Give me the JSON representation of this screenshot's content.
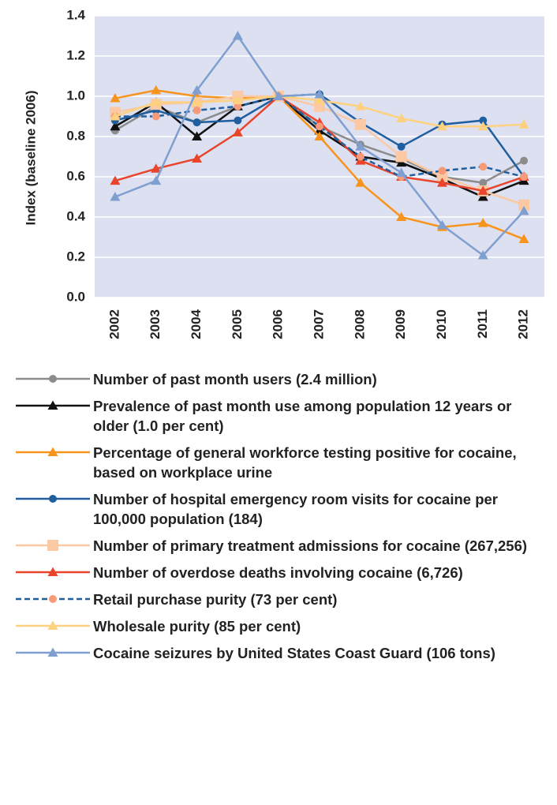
{
  "chart_data": {
    "type": "line",
    "ylabel": "Index (baseline 2006)",
    "categories": [
      "2002",
      "2003",
      "2004",
      "2005",
      "2006",
      "2007",
      "2008",
      "2009",
      "2010",
      "2011",
      "2012"
    ],
    "ylim": [
      0,
      1.4
    ],
    "yticks": [
      {
        "value": 0,
        "label": "0.0"
      },
      0.2,
      0.4,
      0.6,
      0.8,
      {
        "value": 1,
        "label": "1.0"
      },
      1.2,
      1.4
    ],
    "grid": true,
    "series": [
      {
        "name": "Number of past month users (2.4 million)",
        "color": "#8c8c8c",
        "marker": "circle",
        "values": [
          0.83,
          0.95,
          0.87,
          0.95,
          1.0,
          0.85,
          0.76,
          0.69,
          0.6,
          0.57,
          0.68
        ]
      },
      {
        "name": "Prevalence of past month use among population 12 years or older (1.0 per cent)",
        "color": "#111111",
        "marker": "triangle",
        "values": [
          0.85,
          0.97,
          0.8,
          0.95,
          1.0,
          0.83,
          0.7,
          0.67,
          0.59,
          0.5,
          0.58
        ]
      },
      {
        "name": "Percentage of general workforce testing positive for cocaine, based on workplace urine",
        "color": "#f7941d",
        "marker": "triangle",
        "values": [
          0.99,
          1.03,
          1.0,
          0.99,
          1.0,
          0.8,
          0.57,
          0.4,
          0.35,
          0.37,
          0.29
        ]
      },
      {
        "name": "Number of hospital emergency room visits for cocaine per 100,000 population (184)",
        "color": "#1f5fa0",
        "marker": "circle",
        "values": [
          0.88,
          0.93,
          0.87,
          0.88,
          1.0,
          1.01,
          0.87,
          0.75,
          0.86,
          0.88,
          0.6
        ]
      },
      {
        "name": "Number of primary treatment admissions for cocaine (267,256)",
        "color": "#fbc9a4",
        "marker": "square",
        "values": [
          0.92,
          0.96,
          0.97,
          1.0,
          1.0,
          0.95,
          0.86,
          0.7,
          0.6,
          0.53,
          0.46
        ]
      },
      {
        "name": "Number of overdose deaths involving cocaine (6,726)",
        "color": "#e8452c",
        "marker": "triangle",
        "values": [
          0.58,
          0.64,
          0.69,
          0.82,
          1.0,
          0.87,
          0.68,
          0.6,
          0.57,
          0.53,
          0.6
        ]
      },
      {
        "name": "Retail purchase purity (73 per cent)",
        "color": "#1f5fa0",
        "marker_color": "#f79a7a",
        "marker": "circle",
        "dash": true,
        "values": [
          0.9,
          0.9,
          0.93,
          0.95,
          1.0,
          0.85,
          0.7,
          0.6,
          0.63,
          0.65,
          0.6
        ]
      },
      {
        "name": "Wholesale purity (85 per cent)",
        "color": "#fdd17f",
        "marker": "triangle",
        "values": [
          0.9,
          0.97,
          0.97,
          0.98,
          1.0,
          0.98,
          0.95,
          0.89,
          0.85,
          0.85,
          0.86
        ]
      },
      {
        "name": "Cocaine seizures by United States Coast Guard (106 tons)",
        "color": "#7f9fd0",
        "marker": "triangle",
        "values": [
          0.5,
          0.58,
          1.03,
          1.3,
          1.0,
          1.01,
          0.75,
          0.62,
          0.36,
          0.21,
          0.43
        ]
      }
    ]
  }
}
